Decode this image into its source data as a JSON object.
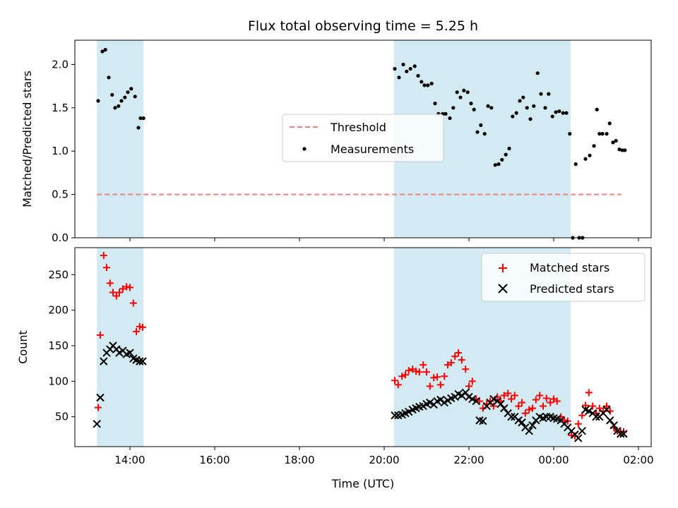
{
  "figure": {
    "title": "Flux total observing time = 5.25 h",
    "xlabel": "Time (UTC)"
  },
  "colors": {
    "band_fill": "#add8e6",
    "threshold": "#f08080",
    "measurement": "#000000",
    "matched": "#ff0000",
    "predicted": "#000000"
  },
  "chart_data": [
    {
      "type": "scatter",
      "ylabel": "Matched/Predicted stars",
      "xlim": [
        12.7,
        26.3
      ],
      "ylim": [
        0,
        2.28
      ],
      "x_ticks": [
        14,
        16,
        18,
        20,
        22,
        24,
        26
      ],
      "y_ticks": [
        0.0,
        0.5,
        1.0,
        1.5,
        2.0
      ],
      "y_tick_labels": [
        "0.0",
        "0.5",
        "1.0",
        "1.5",
        "2.0"
      ],
      "shaded_intervals": [
        [
          13.22,
          14.32
        ],
        [
          20.23,
          24.4
        ]
      ],
      "legend_position": "center",
      "series": [
        {
          "name": "Threshold",
          "type": "dashed-line",
          "x": [
            13.22,
            25.6
          ],
          "y": [
            0.5,
            0.5
          ]
        },
        {
          "name": "Measurements",
          "type": "scatter",
          "x": [
            13.25,
            13.35,
            13.42,
            13.5,
            13.58,
            13.65,
            13.73,
            13.8,
            13.88,
            13.95,
            14.03,
            14.12,
            14.2,
            14.25,
            14.32,
            20.25,
            20.35,
            20.45,
            20.53,
            20.62,
            20.72,
            20.8,
            20.88,
            20.95,
            21.03,
            21.12,
            21.2,
            21.28,
            21.38,
            21.45,
            21.55,
            21.63,
            21.72,
            21.8,
            21.88,
            21.97,
            22.05,
            22.12,
            22.2,
            22.28,
            22.37,
            22.45,
            22.53,
            22.62,
            22.7,
            22.78,
            22.87,
            22.95,
            23.03,
            23.12,
            23.2,
            23.28,
            23.37,
            23.45,
            23.53,
            23.62,
            23.7,
            23.8,
            23.88,
            23.97,
            24.05,
            24.13,
            24.22,
            24.3,
            24.38,
            24.45,
            24.52,
            24.6,
            24.68,
            24.75,
            24.85,
            24.95,
            25.02,
            25.08,
            25.15,
            25.25,
            25.32,
            25.4,
            25.47,
            25.55,
            25.62,
            25.68
          ],
          "y": [
            1.58,
            2.15,
            2.17,
            1.85,
            1.65,
            1.5,
            1.52,
            1.58,
            1.62,
            1.68,
            1.72,
            1.63,
            1.27,
            1.38,
            1.38,
            1.95,
            1.85,
            2.0,
            1.92,
            1.95,
            1.98,
            1.87,
            1.8,
            1.76,
            1.76,
            1.78,
            1.55,
            1.43,
            1.43,
            1.43,
            1.38,
            1.5,
            1.68,
            1.62,
            1.7,
            1.68,
            1.55,
            1.48,
            1.22,
            1.3,
            1.2,
            1.52,
            1.5,
            0.84,
            0.85,
            0.9,
            0.96,
            1.03,
            1.4,
            1.44,
            1.58,
            1.62,
            1.5,
            1.37,
            1.52,
            1.9,
            1.66,
            1.5,
            1.66,
            1.4,
            1.45,
            1.46,
            1.44,
            1.44,
            1.2,
            0.0,
            0.85,
            0.0,
            0.0,
            0.91,
            0.95,
            1.06,
            1.48,
            1.2,
            1.2,
            1.2,
            1.32,
            1.1,
            1.12,
            1.02,
            1.01,
            1.01
          ]
        }
      ]
    },
    {
      "type": "scatter",
      "ylabel": "Count",
      "xlim": [
        12.7,
        26.3
      ],
      "ylim": [
        8,
        288
      ],
      "x_ticks": [
        14,
        16,
        18,
        20,
        22,
        24,
        26
      ],
      "x_tick_labels": [
        "14:00",
        "16:00",
        "18:00",
        "20:00",
        "22:00",
        "00:00",
        "02:00"
      ],
      "y_ticks": [
        50,
        100,
        150,
        200,
        250
      ],
      "y_tick_labels": [
        "50",
        "100",
        "150",
        "200",
        "250"
      ],
      "shaded_intervals": [
        [
          13.22,
          14.32
        ],
        [
          20.23,
          24.4
        ]
      ],
      "legend_position": "upper right",
      "series": [
        {
          "name": "Matched stars",
          "type": "plus",
          "x": [
            13.25,
            13.3,
            13.38,
            13.45,
            13.53,
            13.6,
            13.68,
            13.75,
            13.83,
            13.92,
            14.0,
            14.08,
            14.15,
            14.23,
            14.3,
            20.25,
            20.33,
            20.42,
            20.5,
            20.58,
            20.67,
            20.75,
            20.83,
            20.92,
            21.0,
            21.08,
            21.17,
            21.25,
            21.33,
            21.42,
            21.5,
            21.58,
            21.67,
            21.75,
            21.83,
            21.92,
            22.0,
            22.08,
            22.17,
            22.25,
            22.33,
            22.42,
            22.5,
            22.58,
            22.67,
            22.75,
            22.83,
            22.92,
            23.0,
            23.08,
            23.17,
            23.25,
            23.33,
            23.42,
            23.5,
            23.58,
            23.67,
            23.75,
            23.83,
            23.92,
            24.0,
            24.08,
            24.17,
            24.25,
            24.33,
            24.42,
            24.5,
            24.58,
            24.67,
            24.75,
            24.83,
            24.92,
            25.0,
            25.08,
            25.17,
            25.25,
            25.33,
            25.42,
            25.5,
            25.58,
            25.65
          ],
          "y": [
            63,
            165,
            277,
            260,
            238,
            225,
            220,
            225,
            230,
            233,
            232,
            210,
            170,
            177,
            176,
            101,
            95,
            107,
            109,
            115,
            117,
            114,
            113,
            123,
            113,
            93,
            105,
            106,
            95,
            107,
            123,
            126,
            135,
            140,
            130,
            117,
            93,
            100,
            75,
            72,
            62,
            68,
            72,
            65,
            78,
            72,
            80,
            83,
            75,
            80,
            65,
            70,
            55,
            60,
            62,
            74,
            80,
            65,
            76,
            70,
            75,
            72,
            50,
            45,
            44,
            24,
            23,
            40,
            52,
            66,
            84,
            65,
            55,
            62,
            58,
            65,
            58,
            35,
            30,
            28,
            29
          ]
        },
        {
          "name": "Predicted stars",
          "type": "x",
          "x": [
            13.22,
            13.3,
            13.38,
            13.45,
            13.53,
            13.6,
            13.68,
            13.75,
            13.83,
            13.92,
            14.0,
            14.08,
            14.15,
            14.23,
            14.3,
            20.25,
            20.33,
            20.42,
            20.5,
            20.58,
            20.67,
            20.75,
            20.83,
            20.92,
            21.0,
            21.08,
            21.17,
            21.25,
            21.33,
            21.42,
            21.5,
            21.58,
            21.67,
            21.75,
            21.83,
            21.92,
            22.0,
            22.08,
            22.17,
            22.25,
            22.33,
            22.42,
            22.5,
            22.58,
            22.67,
            22.75,
            22.83,
            22.92,
            23.0,
            23.08,
            23.17,
            23.25,
            23.33,
            23.42,
            23.5,
            23.58,
            23.67,
            23.75,
            23.83,
            23.92,
            24.0,
            24.08,
            24.17,
            24.25,
            24.33,
            24.42,
            24.5,
            24.58,
            24.67,
            24.75,
            24.83,
            24.92,
            25.0,
            25.08,
            25.17,
            25.25,
            25.33,
            25.42,
            25.5,
            25.58,
            25.65
          ],
          "y": [
            40,
            77,
            128,
            140,
            145,
            150,
            145,
            140,
            143,
            138,
            140,
            132,
            130,
            128,
            128,
            52,
            52,
            53,
            55,
            57,
            60,
            62,
            64,
            65,
            68,
            70,
            67,
            72,
            74,
            70,
            73,
            76,
            78,
            82,
            80,
            84,
            78,
            75,
            72,
            45,
            44,
            65,
            70,
            75,
            72,
            68,
            62,
            55,
            50,
            50,
            45,
            42,
            35,
            30,
            38,
            45,
            50,
            48,
            50,
            50,
            48,
            47,
            45,
            40,
            35,
            30,
            25,
            20,
            30,
            60,
            58,
            55,
            50,
            50,
            55,
            60,
            45,
            38,
            30,
            26,
            26
          ]
        }
      ]
    }
  ]
}
